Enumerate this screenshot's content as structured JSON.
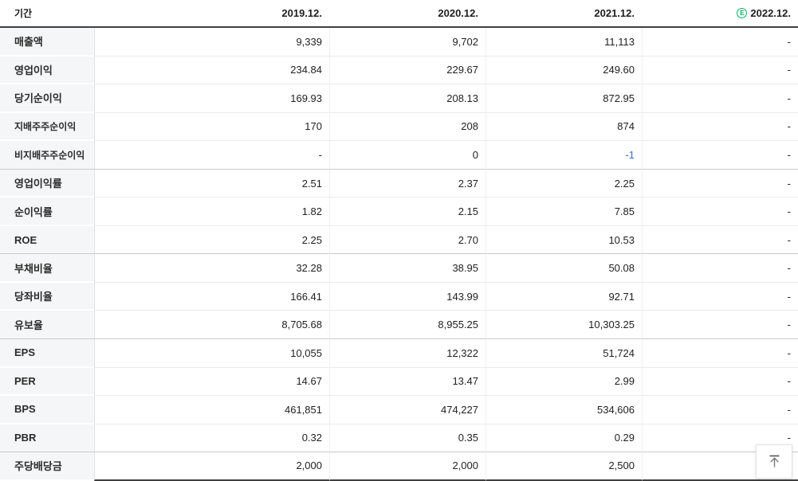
{
  "header": {
    "period_label": "기간",
    "columns": [
      "2019.12.",
      "2020.12.",
      "2021.12.",
      "2022.12."
    ],
    "estimate": {
      "letter": "E",
      "applies_to_column_index": 3,
      "color": "#10b26c"
    }
  },
  "colors": {
    "negative_value": "#3a6ed0",
    "estimate_green": "#10b26c",
    "header_border": "#3f3f3f",
    "label_column_bg": "#f5f6f7"
  },
  "rows": [
    {
      "label": "매출액",
      "sub": false,
      "group_end": false,
      "values": [
        "9,339",
        "9,702",
        "11,113",
        "-"
      ],
      "negative_indices": []
    },
    {
      "label": "영업이익",
      "sub": false,
      "group_end": false,
      "values": [
        "234.84",
        "229.67",
        "249.60",
        "-"
      ],
      "negative_indices": []
    },
    {
      "label": "당기순이익",
      "sub": false,
      "group_end": false,
      "values": [
        "169.93",
        "208.13",
        "872.95",
        "-"
      ],
      "negative_indices": []
    },
    {
      "label": "지배주주순이익",
      "sub": true,
      "group_end": false,
      "values": [
        "170",
        "208",
        "874",
        "-"
      ],
      "negative_indices": []
    },
    {
      "label": "비지배주주순이익",
      "sub": true,
      "group_end": true,
      "values": [
        "-",
        "0",
        "-1",
        "-"
      ],
      "negative_indices": [
        2
      ]
    },
    {
      "label": "영업이익률",
      "sub": false,
      "group_end": false,
      "values": [
        "2.51",
        "2.37",
        "2.25",
        "-"
      ],
      "negative_indices": []
    },
    {
      "label": "순이익률",
      "sub": false,
      "group_end": false,
      "values": [
        "1.82",
        "2.15",
        "7.85",
        "-"
      ],
      "negative_indices": []
    },
    {
      "label": "ROE",
      "sub": false,
      "group_end": true,
      "values": [
        "2.25",
        "2.70",
        "10.53",
        "-"
      ],
      "negative_indices": []
    },
    {
      "label": "부채비율",
      "sub": false,
      "group_end": false,
      "values": [
        "32.28",
        "38.95",
        "50.08",
        "-"
      ],
      "negative_indices": []
    },
    {
      "label": "당좌비율",
      "sub": false,
      "group_end": false,
      "values": [
        "166.41",
        "143.99",
        "92.71",
        "-"
      ],
      "negative_indices": []
    },
    {
      "label": "유보율",
      "sub": false,
      "group_end": true,
      "values": [
        "8,705.68",
        "8,955.25",
        "10,303.25",
        "-"
      ],
      "negative_indices": []
    },
    {
      "label": "EPS",
      "sub": false,
      "group_end": false,
      "values": [
        "10,055",
        "12,322",
        "51,724",
        "-"
      ],
      "negative_indices": []
    },
    {
      "label": "PER",
      "sub": false,
      "group_end": false,
      "values": [
        "14.67",
        "13.47",
        "2.99",
        "-"
      ],
      "negative_indices": []
    },
    {
      "label": "BPS",
      "sub": false,
      "group_end": false,
      "values": [
        "461,851",
        "474,227",
        "534,606",
        "-"
      ],
      "negative_indices": []
    },
    {
      "label": "PBR",
      "sub": false,
      "group_end": true,
      "values": [
        "0.32",
        "0.35",
        "0.29",
        "-"
      ],
      "negative_indices": []
    },
    {
      "label": "주당배당금",
      "sub": false,
      "group_end": false,
      "values": [
        "2,000",
        "2,000",
        "2,500",
        "-"
      ],
      "negative_indices": []
    }
  ],
  "scroll_top": {
    "icon_name": "scroll-to-top-arrow"
  }
}
